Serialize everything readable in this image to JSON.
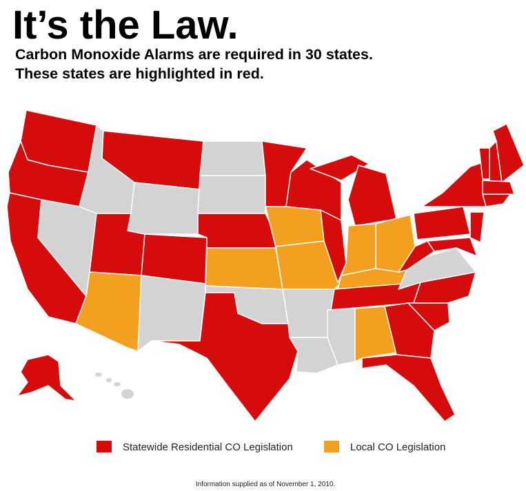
{
  "header": {
    "title": "It’s the Law.",
    "subtitle": [
      "Carbon Monoxide Alarms are required in 30 states.",
      "These states are highlighted in red."
    ]
  },
  "legend": [
    {
      "label": "Statewide Residential CO Legislation",
      "color": "#d60b0b"
    },
    {
      "label": "Local CO Legislation",
      "color": "#f3a020"
    }
  ],
  "footnote": "Information supplied as of November 1, 2010."
}
